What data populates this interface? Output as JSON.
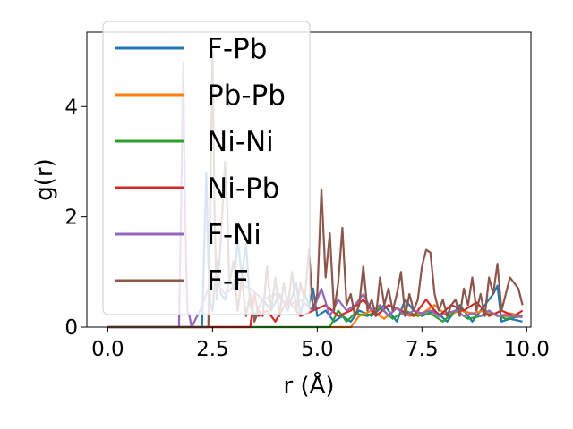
{
  "chart_data": {
    "type": "line",
    "title": "",
    "xlabel": "r (Å)",
    "ylabel": "g(r)",
    "xlim": [
      -0.5,
      10.1
    ],
    "ylim": [
      0,
      5.35
    ],
    "xticks": [
      {
        "v": 0.0,
        "label": "0.0"
      },
      {
        "v": 2.5,
        "label": "2.5"
      },
      {
        "v": 5.0,
        "label": "5.0"
      },
      {
        "v": 7.5,
        "label": "7.5"
      },
      {
        "v": 10.0,
        "label": "10.0"
      }
    ],
    "yticks": [
      {
        "v": 0,
        "label": "0"
      },
      {
        "v": 2,
        "label": "2"
      },
      {
        "v": 4,
        "label": "4"
      }
    ],
    "grid": false,
    "legend_position": "upper-left",
    "series": [
      {
        "name": "F-Pb",
        "color": "#1f77b4",
        "x": [
          0,
          2.25,
          2.3,
          2.35,
          2.4,
          2.45,
          2.5,
          2.6,
          2.7,
          2.8,
          2.9,
          3.0,
          3.1,
          3.2,
          3.3,
          3.4,
          3.5,
          3.7,
          3.9,
          4.1,
          4.3,
          4.5,
          4.6,
          4.7,
          4.8,
          4.9,
          5.0,
          5.2,
          5.4,
          5.6,
          5.8,
          6.0,
          6.3,
          6.6,
          6.9,
          7.1,
          7.3,
          7.5,
          7.8,
          8.1,
          8.4,
          8.7,
          9.0,
          9.2,
          9.3,
          9.4,
          9.6,
          9.9
        ],
        "y": [
          0,
          0,
          1.4,
          2.8,
          1.2,
          0.4,
          0.3,
          1.2,
          0.6,
          0.5,
          0.9,
          0.7,
          1.6,
          0.9,
          1.5,
          0.4,
          0.2,
          0.5,
          0.3,
          0.6,
          0.3,
          0.8,
          0.2,
          0.6,
          0.4,
          0.7,
          0.2,
          0.3,
          0.1,
          0.2,
          0.1,
          0.3,
          0.2,
          0.4,
          0.1,
          0.5,
          0.3,
          0.2,
          0.3,
          0.1,
          0.4,
          0.1,
          0.4,
          0.6,
          0.75,
          0.1,
          0.15,
          0.1
        ]
      },
      {
        "name": "Pb-Pb",
        "color": "#ff7f0e",
        "x": [
          0,
          5.8,
          6.0,
          6.3,
          6.6,
          6.9,
          7.2,
          7.5,
          7.8,
          8.1,
          8.4,
          8.7,
          9.0,
          9.3,
          9.6,
          9.9
        ],
        "y": [
          0,
          0,
          0.2,
          0.3,
          0.15,
          0.35,
          0.2,
          0.25,
          0.4,
          0.2,
          0.3,
          0.25,
          0.3,
          0.2,
          0.25,
          0.2
        ]
      },
      {
        "name": "Ni-Ni",
        "color": "#2ca02c",
        "x": [
          0,
          5.3,
          5.5,
          5.7,
          5.9,
          6.2,
          6.5,
          6.8,
          7.1,
          7.4,
          7.7,
          8.0,
          8.3,
          8.6,
          8.9,
          9.2,
          9.5,
          9.9
        ],
        "y": [
          0,
          0,
          0.3,
          0.1,
          0.25,
          0.2,
          0.35,
          0.15,
          0.3,
          0.2,
          0.25,
          0.1,
          0.3,
          0.15,
          0.2,
          0.25,
          0.15,
          0.2
        ]
      },
      {
        "name": "Ni-Pb",
        "color": "#d62728",
        "x": [
          0,
          3.4,
          3.5,
          3.6,
          3.8,
          4.0,
          4.3,
          4.6,
          4.9,
          5.2,
          5.5,
          5.8,
          6.1,
          6.4,
          6.7,
          7.0,
          7.3,
          7.6,
          7.9,
          8.2,
          8.5,
          8.8,
          9.1,
          9.4,
          9.7,
          9.9
        ],
        "y": [
          0,
          0,
          0.6,
          0.2,
          0.3,
          0.1,
          0.5,
          0.2,
          0.3,
          0.4,
          0.2,
          0.3,
          0.5,
          0.2,
          0.4,
          0.3,
          0.2,
          0.5,
          0.2,
          0.4,
          0.3,
          0.45,
          0.2,
          0.3,
          0.2,
          0.3
        ]
      },
      {
        "name": "F-Ni",
        "color": "#9467bd",
        "x": [
          0,
          1.7,
          1.75,
          1.8,
          1.85,
          1.9,
          1.95,
          2.0,
          2.2,
          2.5,
          2.8,
          3.1,
          3.4,
          3.7,
          4.0,
          4.3,
          4.6,
          4.9,
          5.1,
          5.3,
          5.5,
          5.7,
          5.9,
          6.1,
          6.3,
          6.5,
          6.7,
          6.9,
          7.1,
          7.3,
          7.5,
          7.7,
          7.9,
          8.1,
          8.3,
          8.5,
          8.7,
          8.9,
          9.1,
          9.3,
          9.6,
          9.9
        ],
        "y": [
          0,
          0,
          2.2,
          4.8,
          1.9,
          0.3,
          0.2,
          0,
          0.3,
          0.9,
          0.6,
          0.8,
          0.7,
          0.5,
          0.6,
          0.4,
          0.5,
          0.3,
          0.7,
          0.2,
          0.5,
          0.3,
          0.4,
          0.6,
          0.3,
          0.4,
          0.2,
          0.35,
          0.2,
          0.3,
          0.25,
          0.3,
          0.2,
          0.25,
          0.3,
          0.2,
          0.25,
          0.2,
          0.3,
          0.2,
          0.2,
          0.18
        ]
      },
      {
        "name": "F-F",
        "color": "#8c564b",
        "x": [
          0,
          2.4,
          2.45,
          2.5,
          2.55,
          2.6,
          2.7,
          2.8,
          2.85,
          2.9,
          3.0,
          3.1,
          3.2,
          3.3,
          3.4,
          3.5,
          3.6,
          3.7,
          3.8,
          3.9,
          4.0,
          4.1,
          4.2,
          4.3,
          4.4,
          4.5,
          4.6,
          4.7,
          4.8,
          4.9,
          5.0,
          5.1,
          5.2,
          5.3,
          5.4,
          5.5,
          5.6,
          5.7,
          5.8,
          5.9,
          6.0,
          6.1,
          6.2,
          6.3,
          6.4,
          6.5,
          6.6,
          6.7,
          6.8,
          6.9,
          7.0,
          7.1,
          7.2,
          7.3,
          7.4,
          7.5,
          7.6,
          7.7,
          7.8,
          7.9,
          8.0,
          8.1,
          8.2,
          8.3,
          8.4,
          8.5,
          8.6,
          8.7,
          8.8,
          8.9,
          9.0,
          9.1,
          9.2,
          9.3,
          9.4,
          9.5,
          9.6,
          9.7,
          9.8,
          9.9
        ],
        "y": [
          0,
          0,
          2.5,
          5.0,
          2.0,
          0.5,
          1.6,
          3.0,
          2.2,
          0.8,
          1.2,
          0.3,
          0.9,
          0.2,
          0.6,
          0.1,
          0.3,
          0.2,
          1.1,
          0.3,
          0.9,
          0.2,
          0.8,
          0.4,
          1.0,
          0.3,
          0.8,
          0.5,
          1.4,
          0.3,
          0.6,
          2.5,
          0.9,
          1.7,
          0.3,
          0.8,
          1.8,
          0.4,
          0.6,
          0.2,
          0.4,
          1.1,
          0.3,
          0.5,
          0.2,
          0.9,
          0.4,
          0.7,
          0.3,
          0.6,
          1.0,
          0.2,
          0.6,
          0.3,
          0.5,
          1.1,
          1.4,
          1.35,
          0.6,
          0.3,
          0.5,
          0.2,
          0.4,
          0.5,
          0.2,
          0.7,
          0.4,
          0.9,
          0.3,
          0.6,
          0.2,
          0.9,
          0.6,
          1.15,
          0.3,
          0.6,
          0.9,
          0.8,
          0.7,
          0.4
        ]
      }
    ]
  }
}
